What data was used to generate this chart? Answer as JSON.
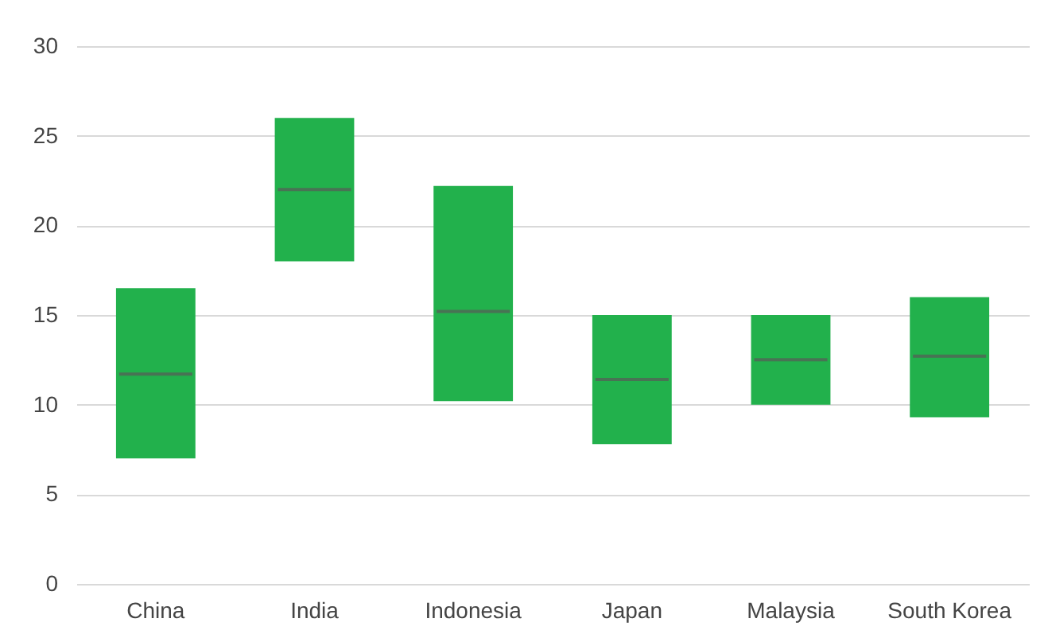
{
  "chart_data": {
    "type": "box",
    "categories": [
      "China",
      "India",
      "Indonesia",
      "Japan",
      "Malaysia",
      "South Korea"
    ],
    "series": [
      {
        "color": "#22b14c",
        "boxes": [
          {
            "low": 7.0,
            "q1": 7.0,
            "median": 11.7,
            "q3": 16.5,
            "high": 16.5
          },
          {
            "low": 18.0,
            "q1": 18.0,
            "median": 22.0,
            "q3": 26.0,
            "high": 26.0
          },
          {
            "low": 10.2,
            "q1": 10.2,
            "median": 15.2,
            "q3": 22.2,
            "high": 22.2
          },
          {
            "low": 7.8,
            "q1": 7.8,
            "median": 11.4,
            "q3": 15.0,
            "high": 15.0
          },
          {
            "low": 10.0,
            "q1": 10.0,
            "median": 12.5,
            "q3": 15.0,
            "high": 15.0
          },
          {
            "low": 9.3,
            "q1": 9.3,
            "median": 12.7,
            "q3": 16.0,
            "high": 16.0
          }
        ]
      }
    ],
    "ylim": [
      0,
      30
    ],
    "yticks": [
      0,
      5,
      10,
      15,
      20,
      25,
      30
    ],
    "grid": "y"
  }
}
